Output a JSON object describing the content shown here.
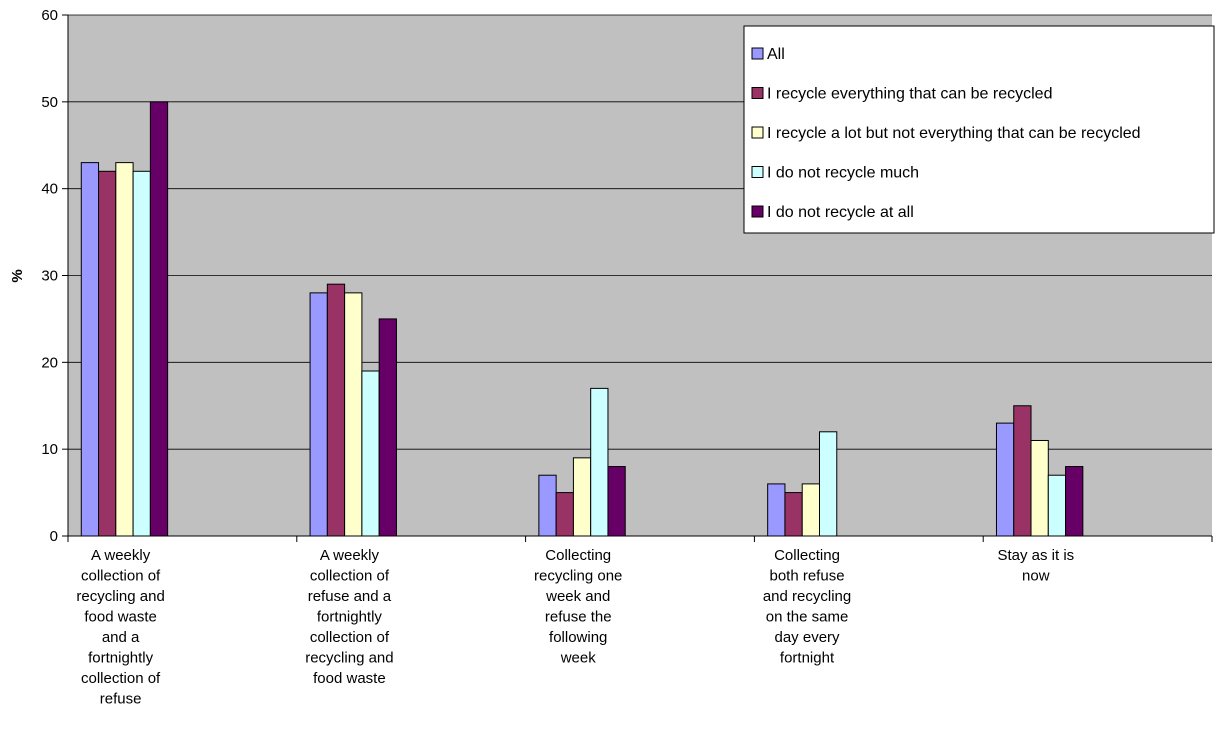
{
  "chart_data": {
    "type": "bar",
    "ylabel": "%",
    "xlabel": "",
    "ylim": [
      0,
      60
    ],
    "yticks": [
      "0",
      "10",
      "20",
      "30",
      "40",
      "50",
      "60"
    ],
    "grid": true,
    "legend_position": "top-right",
    "categories": [
      "A weekly collection of recycling and food waste and a fortnightly collection of refuse",
      "A weekly collection of refuse and a fortnightly collection of recycling and food waste",
      "Collecting recycling one week and refuse the following week",
      "Collecting both refuse and recycling on the same day every fortnight",
      "Stay as it is now"
    ],
    "category_label_lines": [
      [
        "A weekly",
        "collection of",
        "recycling and",
        "food waste",
        "and a",
        "fortnightly",
        "collection of",
        "refuse"
      ],
      [
        "A weekly",
        "collection of",
        "refuse and a",
        "fortnightly",
        "collection of",
        "recycling and",
        "food waste"
      ],
      [
        "Collecting",
        "recycling one",
        "week and",
        "refuse the",
        "following",
        "week"
      ],
      [
        "Collecting",
        "both refuse",
        "and recycling",
        "on the same",
        "day every",
        "fortnight"
      ],
      [
        "Stay as it is",
        "now"
      ]
    ],
    "series": [
      {
        "name": "All",
        "color": "#9999ff",
        "values": [
          43,
          28,
          7,
          6,
          13
        ]
      },
      {
        "name": "I recycle everything that can be recycled",
        "color": "#993366",
        "values": [
          42,
          29,
          5,
          5,
          15
        ]
      },
      {
        "name": "I recycle a lot but not everything that can be recycled",
        "color": "#ffffcc",
        "values": [
          43,
          28,
          9,
          6,
          11
        ]
      },
      {
        "name": "I do not recycle much",
        "color": "#ccffff",
        "values": [
          42,
          19,
          17,
          12,
          7
        ]
      },
      {
        "name": "I do not recycle at all",
        "color": "#660066",
        "values": [
          50,
          25,
          8,
          0,
          8
        ]
      }
    ],
    "colors": {
      "plot_background": "#c0c0c0",
      "gridline": "#000000",
      "bar_outline": "#000000"
    }
  }
}
